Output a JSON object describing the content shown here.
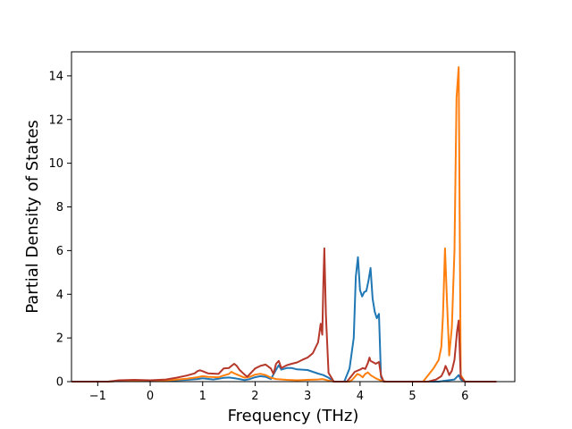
{
  "chart_data": {
    "type": "line",
    "title": "",
    "xlabel": "Frequency (THz)",
    "ylabel": "Partial Density of States",
    "xlim": [
      -1.5,
      6.95
    ],
    "ylim": [
      0,
      15.1
    ],
    "xticks": [
      -1,
      0,
      1,
      2,
      3,
      4,
      5,
      6
    ],
    "yticks": [
      0,
      2,
      4,
      6,
      8,
      10,
      12,
      14
    ],
    "grid": false,
    "legend": "none",
    "series": [
      {
        "color": "#1f77b4",
        "points": [
          [
            -1.5,
            0
          ],
          [
            -0.8,
            0
          ],
          [
            -0.6,
            0.03
          ],
          [
            -0.3,
            0.04
          ],
          [
            0,
            0.03
          ],
          [
            0.4,
            0.05
          ],
          [
            0.7,
            0.08
          ],
          [
            0.9,
            0.12
          ],
          [
            1.0,
            0.15
          ],
          [
            1.2,
            0.1
          ],
          [
            1.3,
            0.13
          ],
          [
            1.4,
            0.17
          ],
          [
            1.5,
            0.19
          ],
          [
            1.6,
            0.16
          ],
          [
            1.7,
            0.12
          ],
          [
            1.8,
            0.07
          ],
          [
            1.9,
            0.12
          ],
          [
            2.0,
            0.2
          ],
          [
            2.1,
            0.25
          ],
          [
            2.2,
            0.22
          ],
          [
            2.3,
            0.12
          ],
          [
            2.4,
            0.55
          ],
          [
            2.45,
            0.75
          ],
          [
            2.5,
            0.55
          ],
          [
            2.6,
            0.62
          ],
          [
            2.7,
            0.62
          ],
          [
            2.8,
            0.56
          ],
          [
            2.9,
            0.55
          ],
          [
            3.0,
            0.53
          ],
          [
            3.1,
            0.45
          ],
          [
            3.2,
            0.37
          ],
          [
            3.3,
            0.3
          ],
          [
            3.4,
            0.18
          ],
          [
            3.5,
            0
          ],
          [
            3.7,
            0
          ],
          [
            3.8,
            0.6
          ],
          [
            3.88,
            2.0
          ],
          [
            3.92,
            4.8
          ],
          [
            3.96,
            5.7
          ],
          [
            4.0,
            4.2
          ],
          [
            4.04,
            3.9
          ],
          [
            4.08,
            4.1
          ],
          [
            4.12,
            4.15
          ],
          [
            4.16,
            4.6
          ],
          [
            4.2,
            5.2
          ],
          [
            4.24,
            3.8
          ],
          [
            4.28,
            3.2
          ],
          [
            4.32,
            2.9
          ],
          [
            4.36,
            3.1
          ],
          [
            4.4,
            0.2
          ],
          [
            4.45,
            0
          ],
          [
            5.5,
            0
          ],
          [
            5.65,
            0.05
          ],
          [
            5.8,
            0.1
          ],
          [
            5.88,
            0.3
          ],
          [
            5.92,
            0.1
          ],
          [
            6.0,
            0
          ],
          [
            6.6,
            0
          ]
        ]
      },
      {
        "color": "#ff7f0e",
        "points": [
          [
            -1.5,
            0
          ],
          [
            -0.8,
            0
          ],
          [
            -0.6,
            0.03
          ],
          [
            -0.3,
            0.04
          ],
          [
            0,
            0.03
          ],
          [
            0.4,
            0.07
          ],
          [
            0.7,
            0.13
          ],
          [
            0.9,
            0.2
          ],
          [
            1.0,
            0.25
          ],
          [
            1.1,
            0.22
          ],
          [
            1.3,
            0.2
          ],
          [
            1.4,
            0.28
          ],
          [
            1.5,
            0.35
          ],
          [
            1.55,
            0.45
          ],
          [
            1.6,
            0.38
          ],
          [
            1.7,
            0.28
          ],
          [
            1.8,
            0.18
          ],
          [
            1.9,
            0.22
          ],
          [
            2.0,
            0.32
          ],
          [
            2.1,
            0.36
          ],
          [
            2.2,
            0.3
          ],
          [
            2.3,
            0.18
          ],
          [
            2.4,
            0.12
          ],
          [
            2.6,
            0.08
          ],
          [
            2.8,
            0.06
          ],
          [
            3.0,
            0.08
          ],
          [
            3.2,
            0.1
          ],
          [
            3.28,
            0.12
          ],
          [
            3.32,
            0.1
          ],
          [
            3.4,
            0.05
          ],
          [
            3.5,
            0
          ],
          [
            3.8,
            0
          ],
          [
            3.85,
            0.08
          ],
          [
            3.95,
            0.35
          ],
          [
            4.0,
            0.3
          ],
          [
            4.05,
            0.2
          ],
          [
            4.1,
            0.35
          ],
          [
            4.15,
            0.42
          ],
          [
            4.2,
            0.3
          ],
          [
            4.3,
            0.15
          ],
          [
            4.4,
            0.05
          ],
          [
            4.5,
            0
          ],
          [
            5.2,
            0
          ],
          [
            5.3,
            0.3
          ],
          [
            5.4,
            0.6
          ],
          [
            5.5,
            1.0
          ],
          [
            5.55,
            1.6
          ],
          [
            5.58,
            3.0
          ],
          [
            5.62,
            6.1
          ],
          [
            5.66,
            3.5
          ],
          [
            5.7,
            1.2
          ],
          [
            5.75,
            2.5
          ],
          [
            5.8,
            6.0
          ],
          [
            5.84,
            13.0
          ],
          [
            5.88,
            14.4
          ],
          [
            5.92,
            0.3
          ],
          [
            6.0,
            0
          ],
          [
            6.6,
            0
          ]
        ]
      },
      {
        "color": "#b5382a",
        "points": [
          [
            -1.5,
            0
          ],
          [
            -0.8,
            0
          ],
          [
            -0.6,
            0.06
          ],
          [
            -0.3,
            0.08
          ],
          [
            0,
            0.06
          ],
          [
            0.3,
            0.1
          ],
          [
            0.5,
            0.18
          ],
          [
            0.7,
            0.28
          ],
          [
            0.85,
            0.38
          ],
          [
            0.9,
            0.48
          ],
          [
            0.95,
            0.52
          ],
          [
            1.0,
            0.48
          ],
          [
            1.1,
            0.38
          ],
          [
            1.3,
            0.35
          ],
          [
            1.4,
            0.6
          ],
          [
            1.5,
            0.62
          ],
          [
            1.55,
            0.72
          ],
          [
            1.6,
            0.82
          ],
          [
            1.65,
            0.72
          ],
          [
            1.7,
            0.55
          ],
          [
            1.8,
            0.32
          ],
          [
            1.85,
            0.22
          ],
          [
            1.9,
            0.35
          ],
          [
            2.0,
            0.6
          ],
          [
            2.1,
            0.72
          ],
          [
            2.2,
            0.78
          ],
          [
            2.3,
            0.6
          ],
          [
            2.35,
            0.35
          ],
          [
            2.4,
            0.82
          ],
          [
            2.45,
            0.95
          ],
          [
            2.5,
            0.62
          ],
          [
            2.6,
            0.75
          ],
          [
            2.7,
            0.82
          ],
          [
            2.8,
            0.88
          ],
          [
            2.9,
            1.0
          ],
          [
            3.0,
            1.1
          ],
          [
            3.1,
            1.3
          ],
          [
            3.2,
            1.8
          ],
          [
            3.25,
            2.65
          ],
          [
            3.28,
            2.15
          ],
          [
            3.3,
            4.5
          ],
          [
            3.32,
            6.1
          ],
          [
            3.35,
            3.0
          ],
          [
            3.4,
            0.4
          ],
          [
            3.5,
            0
          ],
          [
            3.75,
            0
          ],
          [
            3.85,
            0.3
          ],
          [
            3.9,
            0.45
          ],
          [
            4.0,
            0.55
          ],
          [
            4.05,
            0.62
          ],
          [
            4.1,
            0.58
          ],
          [
            4.15,
            0.85
          ],
          [
            4.18,
            1.1
          ],
          [
            4.2,
            0.95
          ],
          [
            4.3,
            0.82
          ],
          [
            4.36,
            0.9
          ],
          [
            4.4,
            0.3
          ],
          [
            4.45,
            0
          ],
          [
            5.3,
            0
          ],
          [
            5.45,
            0.1
          ],
          [
            5.55,
            0.25
          ],
          [
            5.6,
            0.5
          ],
          [
            5.63,
            0.72
          ],
          [
            5.67,
            0.5
          ],
          [
            5.7,
            0.3
          ],
          [
            5.75,
            0.5
          ],
          [
            5.8,
            1.0
          ],
          [
            5.85,
            2.3
          ],
          [
            5.88,
            2.8
          ],
          [
            5.92,
            0.2
          ],
          [
            6.0,
            0
          ],
          [
            6.6,
            0
          ]
        ]
      }
    ]
  }
}
